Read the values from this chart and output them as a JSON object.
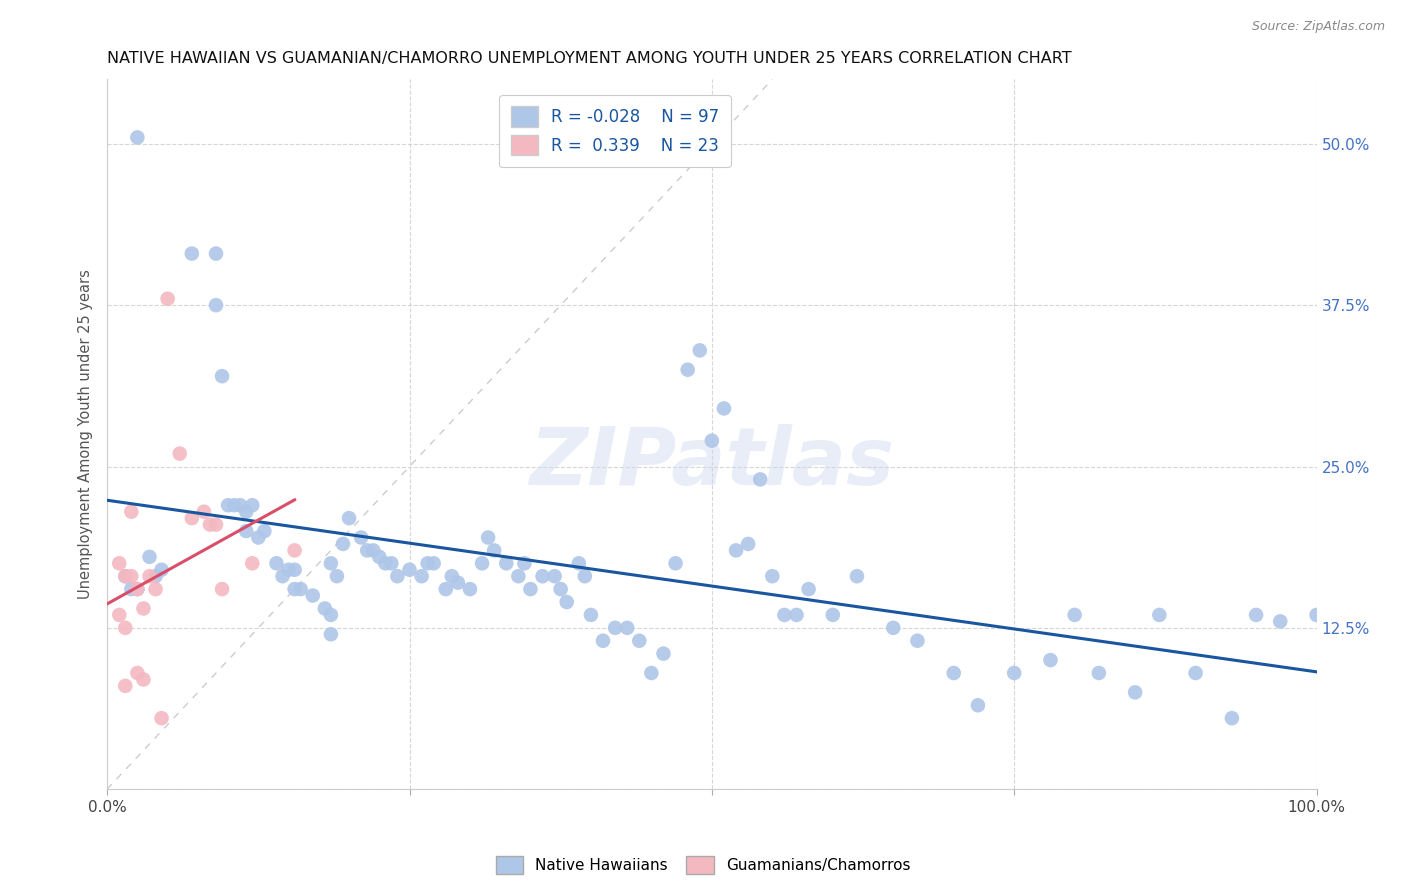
{
  "title": "NATIVE HAWAIIAN VS GUAMANIAN/CHAMORRO UNEMPLOYMENT AMONG YOUTH UNDER 25 YEARS CORRELATION CHART",
  "source": "Source: ZipAtlas.com",
  "ylabel": "Unemployment Among Youth under 25 years",
  "xlim": [
    0,
    1.0
  ],
  "ylim": [
    0,
    0.55
  ],
  "right_ytick_color": "#4472c4",
  "legend_r_blue": "R = -0.028",
  "legend_n_blue": "N = 97",
  "legend_r_pink": "R =  0.339",
  "legend_n_pink": "N = 23",
  "blue_color": "#aec6e8",
  "pink_color": "#f4b8c1",
  "trend_blue_color": "#1a56a0",
  "trend_pink_color": "#d94f6a",
  "diagonal_color": "#cccccc",
  "watermark": "ZIPatlas",
  "blue_points_x": [
    0.025,
    0.07,
    0.09,
    0.09,
    0.095,
    0.1,
    0.105,
    0.11,
    0.115,
    0.115,
    0.12,
    0.125,
    0.13,
    0.14,
    0.145,
    0.15,
    0.155,
    0.155,
    0.16,
    0.17,
    0.18,
    0.185,
    0.185,
    0.185,
    0.19,
    0.195,
    0.2,
    0.21,
    0.215,
    0.22,
    0.225,
    0.23,
    0.235,
    0.24,
    0.25,
    0.26,
    0.265,
    0.27,
    0.28,
    0.285,
    0.29,
    0.3,
    0.31,
    0.315,
    0.32,
    0.33,
    0.34,
    0.345,
    0.35,
    0.36,
    0.37,
    0.375,
    0.38,
    0.39,
    0.395,
    0.4,
    0.41,
    0.42,
    0.43,
    0.44,
    0.45,
    0.46,
    0.47,
    0.48,
    0.49,
    0.5,
    0.51,
    0.52,
    0.53,
    0.54,
    0.55,
    0.56,
    0.57,
    0.58,
    0.6,
    0.62,
    0.65,
    0.67,
    0.7,
    0.72,
    0.75,
    0.78,
    0.8,
    0.82,
    0.85,
    0.87,
    0.9,
    0.93,
    0.95,
    0.97,
    1.0,
    0.015,
    0.02,
    0.025,
    0.035,
    0.04,
    0.045
  ],
  "blue_points_y": [
    0.505,
    0.415,
    0.415,
    0.375,
    0.32,
    0.22,
    0.22,
    0.22,
    0.215,
    0.2,
    0.22,
    0.195,
    0.2,
    0.175,
    0.165,
    0.17,
    0.17,
    0.155,
    0.155,
    0.15,
    0.14,
    0.135,
    0.12,
    0.175,
    0.165,
    0.19,
    0.21,
    0.195,
    0.185,
    0.185,
    0.18,
    0.175,
    0.175,
    0.165,
    0.17,
    0.165,
    0.175,
    0.175,
    0.155,
    0.165,
    0.16,
    0.155,
    0.175,
    0.195,
    0.185,
    0.175,
    0.165,
    0.175,
    0.155,
    0.165,
    0.165,
    0.155,
    0.145,
    0.175,
    0.165,
    0.135,
    0.115,
    0.125,
    0.125,
    0.115,
    0.09,
    0.105,
    0.175,
    0.325,
    0.34,
    0.27,
    0.295,
    0.185,
    0.19,
    0.24,
    0.165,
    0.135,
    0.135,
    0.155,
    0.135,
    0.165,
    0.125,
    0.115,
    0.09,
    0.065,
    0.09,
    0.1,
    0.135,
    0.09,
    0.075,
    0.135,
    0.09,
    0.055,
    0.135,
    0.13,
    0.135,
    0.165,
    0.155,
    0.155,
    0.18,
    0.165,
    0.17
  ],
  "pink_points_x": [
    0.01,
    0.01,
    0.015,
    0.015,
    0.015,
    0.02,
    0.02,
    0.025,
    0.025,
    0.03,
    0.03,
    0.035,
    0.04,
    0.045,
    0.05,
    0.06,
    0.07,
    0.08,
    0.085,
    0.09,
    0.095,
    0.12,
    0.155
  ],
  "pink_points_y": [
    0.175,
    0.135,
    0.165,
    0.125,
    0.08,
    0.215,
    0.165,
    0.155,
    0.09,
    0.14,
    0.085,
    0.165,
    0.155,
    0.055,
    0.38,
    0.26,
    0.21,
    0.215,
    0.205,
    0.205,
    0.155,
    0.175,
    0.185
  ]
}
